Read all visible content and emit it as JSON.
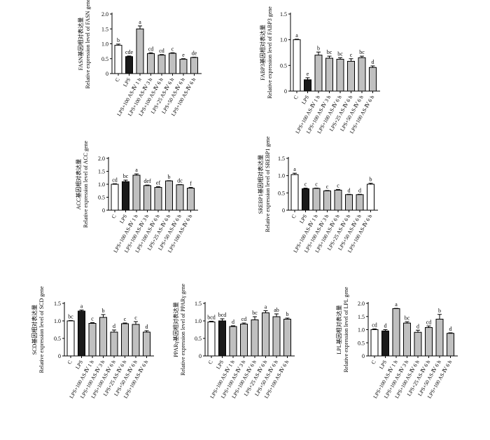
{
  "colors": {
    "control": "#ffffff",
    "lps": "#1a1a1a",
    "treatment": "#c0c0c0",
    "last": "#ffffff",
    "stroke": "#000000"
  },
  "chart_data": [
    {
      "type": "bar",
      "ylabel_gene_cn": "FASN基因相对表达量",
      "ylabel_gene_en": "Relative expression level of FASN gene",
      "ylim": [
        0,
        2.0
      ],
      "yticks": [
        "0",
        "0.5",
        "1.0",
        "1.5",
        "2.0"
      ],
      "categories": [
        "C",
        "LPS",
        "LPS+100 AS-Ⅳ 1 h",
        "LPS+100 AS-Ⅳ 3 h",
        "LPS+100 AS-Ⅳ 6 h",
        "LPS+25 AS-Ⅳ 6 h",
        "LPS+50 AS-Ⅳ 6 h",
        "LPS+100 AS-Ⅳ 6 h"
      ],
      "values": [
        0.95,
        0.57,
        1.5,
        0.67,
        0.62,
        0.68,
        0.48,
        0.54
      ],
      "errors": [
        0.04,
        0.02,
        0.1,
        0.03,
        0.02,
        0.02,
        0.02,
        0.01
      ],
      "labels": [
        "b",
        "cde",
        "a",
        "cd",
        "cd",
        "c",
        "e",
        "de"
      ]
    },
    {
      "type": "bar",
      "ylabel_gene_cn": "FABP3基因相对表达量",
      "ylabel_gene_en": "Relative expression level of FABP3 gene",
      "ylim": [
        0,
        1.5
      ],
      "yticks": [
        "0",
        "0.5",
        "1.0",
        "1.5"
      ],
      "categories": [
        "C",
        "LPS",
        "LPS+100 AS-Ⅳ 1 h",
        "LPS+100 AS-Ⅳ 3 h",
        "LPS+100 AS-Ⅳ 6 h",
        "LPS+25 AS-Ⅳ 6 h",
        "LPS+50 AS-Ⅳ 6 h",
        "LPS+100 AS-Ⅳ 6 h"
      ],
      "values": [
        1.0,
        0.22,
        0.7,
        0.64,
        0.62,
        0.58,
        0.65,
        0.46
      ],
      "errors": [
        0.01,
        0.04,
        0.06,
        0.04,
        0.03,
        0.05,
        0.03,
        0.03
      ],
      "labels": [
        "a",
        "e",
        "b",
        "bc",
        "bc",
        "c",
        "bc",
        "d"
      ]
    },
    {
      "type": "bar",
      "ylabel_gene_cn": "ACC基因相对表达量",
      "ylabel_gene_en": "Relative expression level of ACC gene",
      "ylim": [
        0,
        2.0
      ],
      "yticks": [
        "0",
        "0.5",
        "1.0",
        "1.5",
        "2.0"
      ],
      "categories": [
        "C",
        "LPS",
        "LPS+100 AS-Ⅳ 1 h",
        "LPS+100 AS-Ⅳ 3 h",
        "LPS+100 AS-Ⅳ 6 h",
        "LPS+25 AS-Ⅳ 6 h",
        "LPS+50 AS-Ⅳ 6 h",
        "LPS+100 AS-Ⅳ 6 h"
      ],
      "values": [
        1.0,
        1.1,
        1.35,
        0.95,
        0.88,
        1.13,
        0.98,
        0.85
      ],
      "errors": [
        0.02,
        0.06,
        0.05,
        0.02,
        0.03,
        0.01,
        0.01,
        0.03
      ],
      "labels": [
        "cd",
        "bc",
        "a",
        "def",
        "ef",
        "b",
        "dc",
        "f"
      ]
    },
    {
      "type": "bar",
      "ylabel_gene_cn": "SREBP1基因相对表达量",
      "ylabel_gene_en": "Relative expression level of SREBP1 gene",
      "ylim": [
        0,
        1.5
      ],
      "yticks": [
        "0",
        "0.5",
        "1.0",
        "1.5"
      ],
      "categories": [
        "C",
        "LPS",
        "LPS+100 AS-Ⅳ 1 h",
        "LPS+100 AS-Ⅳ 3 h",
        "LPS+100 AS-Ⅳ 6 h",
        "LPS+25 AS-Ⅳ 6 h",
        "LPS+50 AS-Ⅳ 6 h",
        "LPS+100 AS-Ⅳ 6 h"
      ],
      "values": [
        1.03,
        0.62,
        0.63,
        0.56,
        0.58,
        0.45,
        0.45,
        0.75
      ],
      "errors": [
        0.04,
        0.02,
        0.01,
        0.01,
        0.02,
        0.01,
        0.01,
        0.03
      ],
      "labels": [
        "a",
        "c",
        "c",
        "c",
        "c",
        "d",
        "d",
        "b"
      ]
    },
    {
      "type": "bar",
      "ylabel_gene_cn": "SCD基因相对表达量",
      "ylabel_gene_en": "Relative expression level of SCD gene",
      "ylim": [
        0,
        1.5
      ],
      "yticks": [
        "0",
        "0.5",
        "1.0",
        "1.5"
      ],
      "categories": [
        "C",
        "LPS",
        "LPS+100 AS-Ⅳ 1 h",
        "LPS+100 AS-Ⅳ 3 h",
        "LPS+100 AS-Ⅳ 6 h",
        "LPS+25 AS-Ⅳ 6 h",
        "LPS+50 AS-Ⅳ 6 h",
        "LPS+100 AS-Ⅳ 6 h"
      ],
      "values": [
        1.0,
        1.28,
        0.93,
        1.1,
        0.68,
        0.92,
        0.9,
        0.68
      ],
      "errors": [
        0.01,
        0.03,
        0.02,
        0.08,
        0.06,
        0.02,
        0.08,
        0.04
      ],
      "labels": [
        "bc",
        "a",
        "c",
        "b",
        "d",
        "c",
        "c",
        "d"
      ]
    },
    {
      "type": "bar",
      "ylabel_gene_cn": "PPARγ基因相对表达量",
      "ylabel_gene_en": "Relative expression level of PPARγ gene",
      "ylim": [
        0,
        1.5
      ],
      "yticks": [
        "0",
        "0.5",
        "1.0",
        "1.5"
      ],
      "categories": [
        "C",
        "LPS",
        "LPS+100 AS-Ⅳ 1 h",
        "LPS+100 AS-Ⅳ 3 h",
        "LPS+100 AS-Ⅳ 6 h",
        "LPS+25 AS-Ⅳ 6 h",
        "LPS+50 AS-Ⅳ 6 h",
        "LPS+100 AS-Ⅳ 6 h"
      ],
      "values": [
        0.97,
        1.0,
        0.84,
        0.91,
        1.03,
        1.23,
        1.12,
        1.05
      ],
      "errors": [
        0.02,
        0.06,
        0.02,
        0.03,
        0.09,
        0.06,
        0.08,
        0.03
      ],
      "labels": [
        "bcd",
        "bcd",
        "d",
        "cd",
        "bc",
        "a",
        "ab",
        "b"
      ]
    },
    {
      "type": "bar",
      "ylabel_gene_cn": "LPL基因相对表达量",
      "ylabel_gene_en": "Relative expression level of LPL gene",
      "ylim": [
        0,
        2.0
      ],
      "yticks": [
        "0",
        "0.5",
        "1.0",
        "1.5",
        "2.0"
      ],
      "categories": [
        "C",
        "LPS",
        "LPS+100 AS-Ⅳ 1 h",
        "LPS+100 AS-Ⅳ 3 h",
        "LPS+100 AS-Ⅳ 6 h",
        "LPS+25 AS-Ⅳ 6 h",
        "LPS+50 AS-Ⅳ 6 h",
        "LPS+100 AS-Ⅳ 6 h"
      ],
      "values": [
        1.0,
        0.95,
        1.8,
        1.25,
        0.9,
        1.08,
        1.4,
        0.86
      ],
      "errors": [
        0.03,
        0.05,
        0.01,
        0.05,
        0.08,
        0.06,
        0.18,
        0.02
      ],
      "labels": [
        "cd",
        "d",
        "a",
        "bc",
        "d",
        "cd",
        "b",
        "d"
      ]
    }
  ]
}
